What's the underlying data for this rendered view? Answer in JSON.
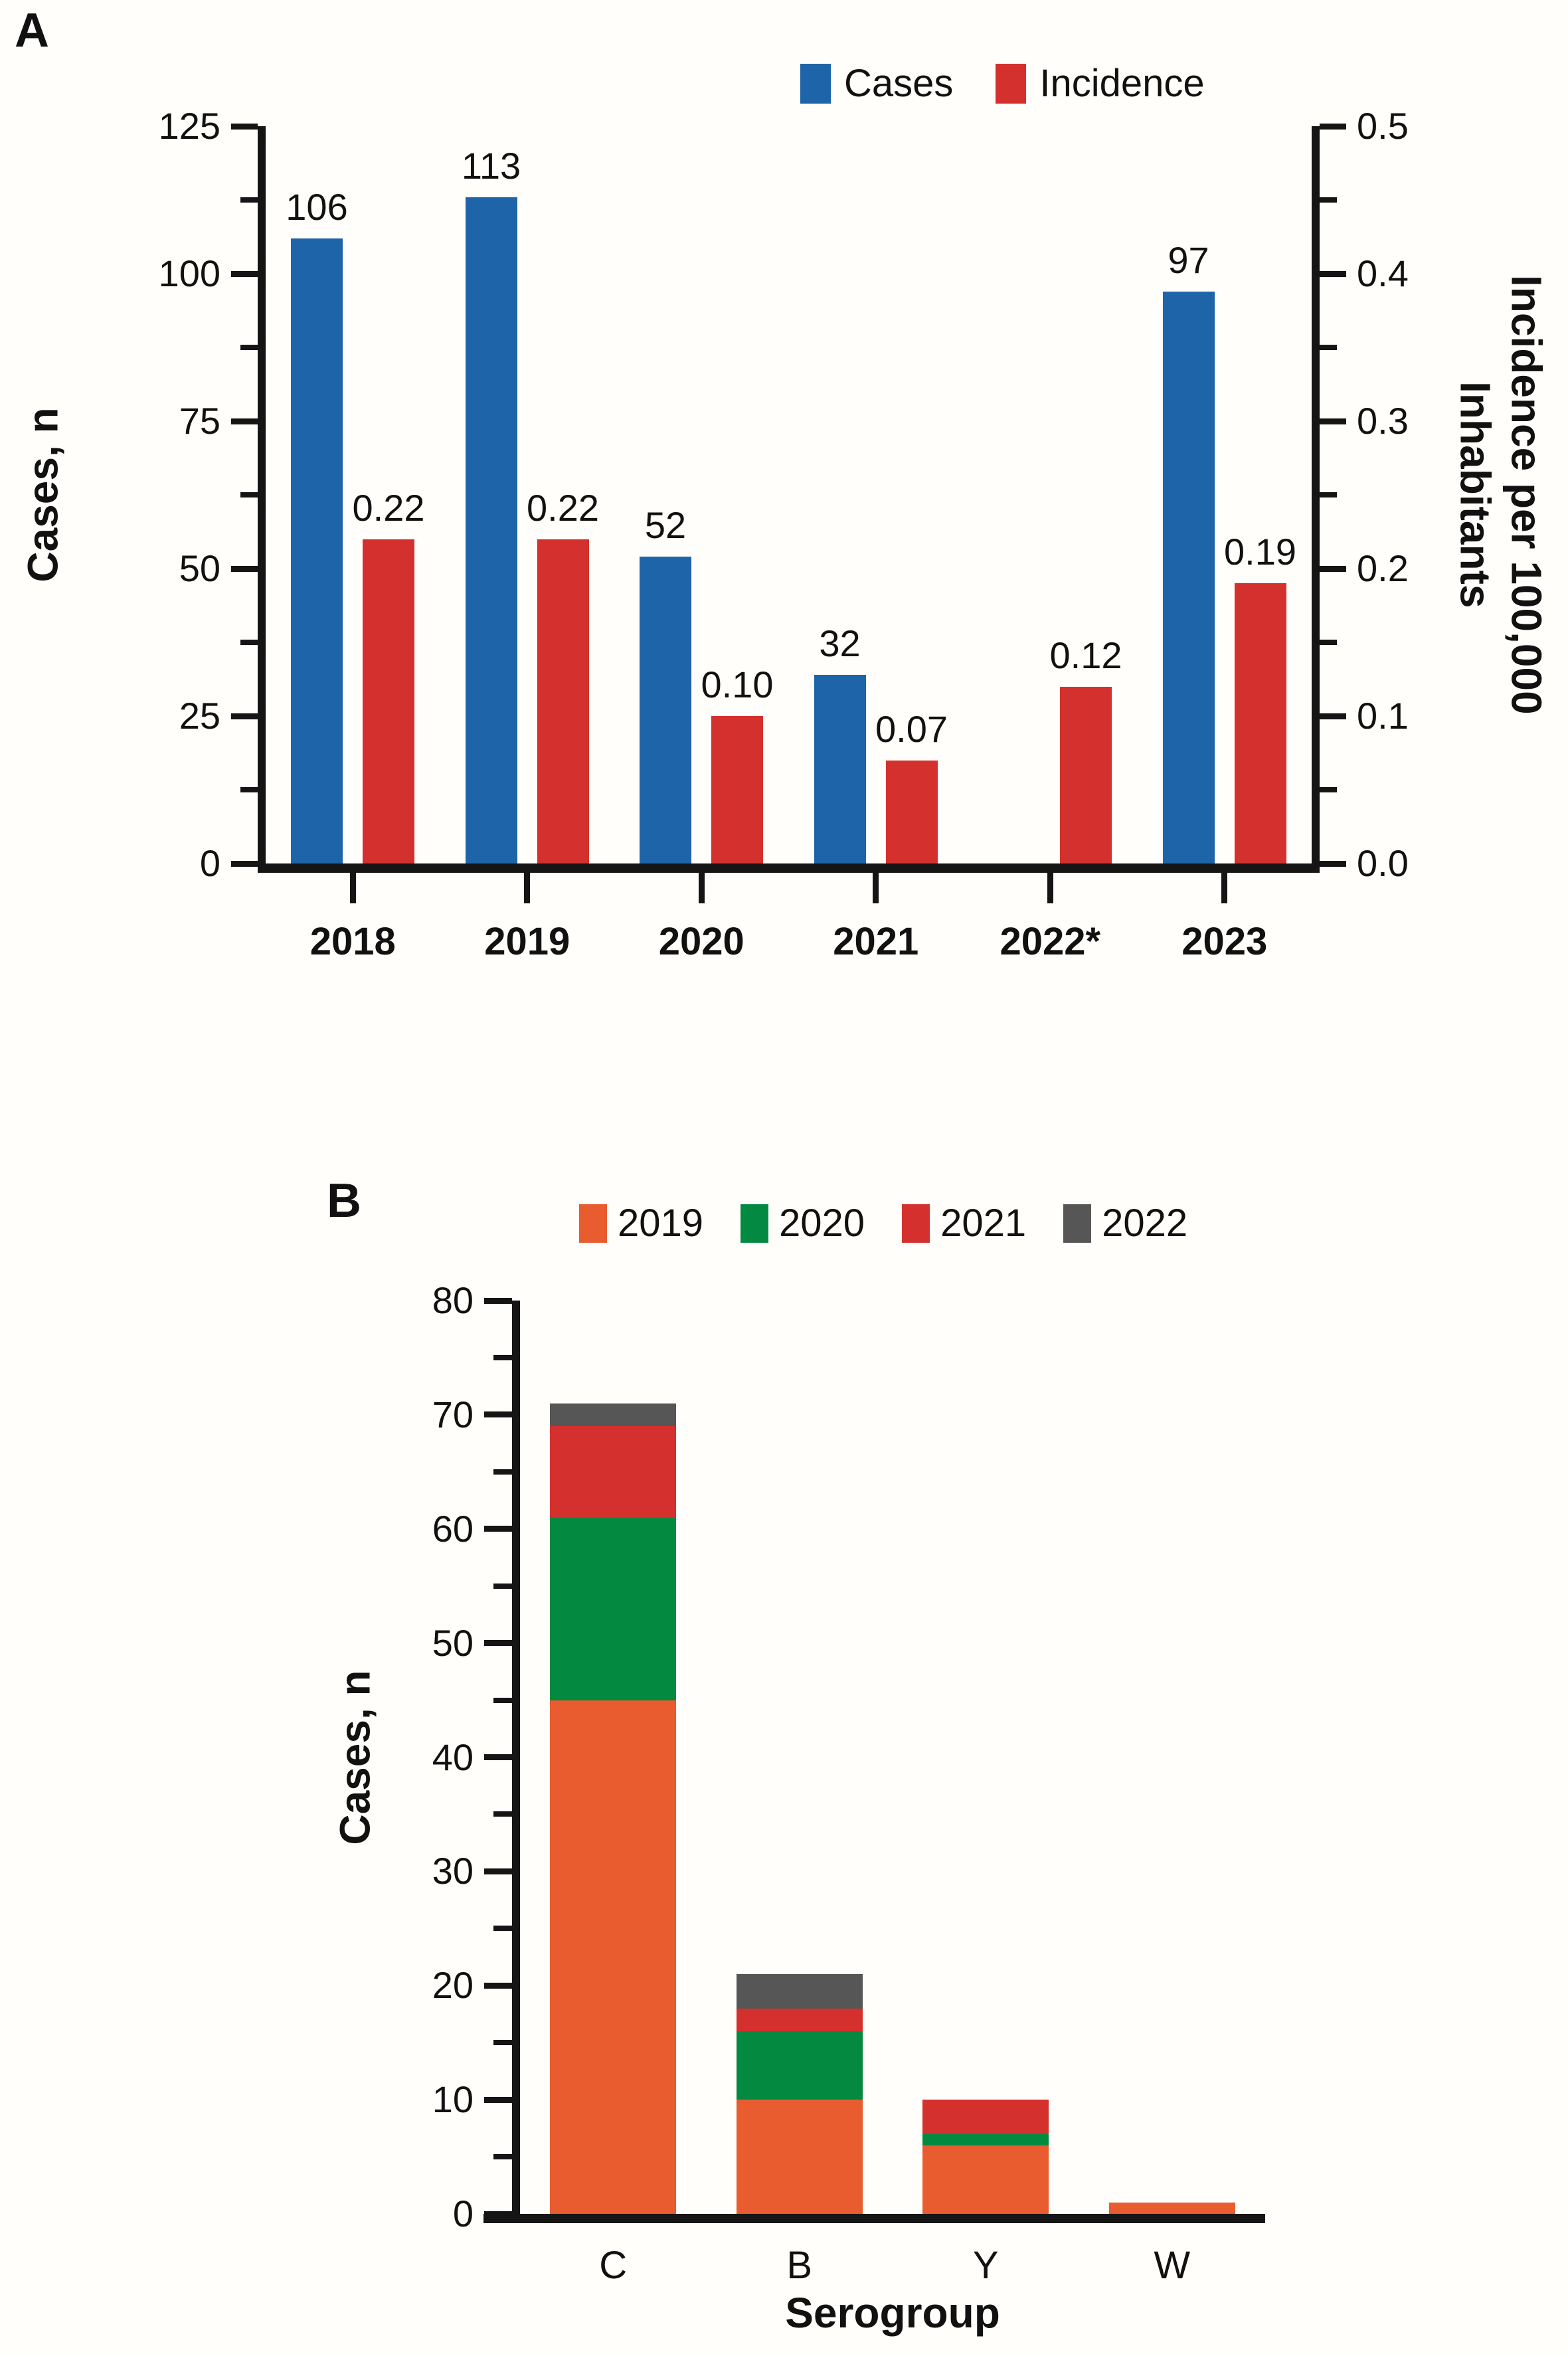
{
  "page": {
    "background": "#fffefa"
  },
  "chart_data": [
    {
      "type": "bar",
      "panel": "A",
      "title": "",
      "categories": [
        "2018",
        "2019",
        "2020",
        "2021",
        "2022*",
        "2023"
      ],
      "series": [
        {
          "name": "Cases",
          "axis": "left",
          "color": "#1e64a9",
          "values": [
            106,
            113,
            52,
            32,
            null,
            97
          ],
          "labels": [
            "106",
            "113",
            "52",
            "32",
            "",
            "97"
          ]
        },
        {
          "name": "Incidence",
          "axis": "right",
          "color": "#d4302d",
          "values": [
            0.22,
            0.22,
            0.1,
            0.07,
            0.12,
            0.19
          ],
          "labels": [
            "0.22",
            "0.22",
            "0.10",
            "0.07",
            "0.12",
            "0.19"
          ]
        }
      ],
      "ylabel_left": "Cases, n",
      "ylabel_right_lines": [
        "Incidence per 100,000",
        "Inhabitants"
      ],
      "ylim_left": [
        0,
        125
      ],
      "yticks_left": [
        "0",
        "25",
        "50",
        "75",
        "100",
        "125"
      ],
      "minor_tick_step_left": 12.5,
      "ylim_right": [
        0,
        0.5
      ],
      "yticks_right": [
        "0.0",
        "0.1",
        "0.2",
        "0.3",
        "0.4",
        "0.5"
      ],
      "minor_tick_step_right": 0.05,
      "legend_position": "top",
      "grid": false
    },
    {
      "type": "stacked-bar",
      "panel": "B",
      "title": "",
      "categories": [
        "C",
        "B",
        "Y",
        "W"
      ],
      "xlabel": "Serogroup",
      "ylabel": "Cases, n",
      "ylim": [
        0,
        80
      ],
      "yticks": [
        "0",
        "10",
        "20",
        "30",
        "40",
        "50",
        "60",
        "70",
        "80"
      ],
      "minor_tick_step": 5,
      "series": [
        {
          "name": "2019",
          "color": "#e85c2f",
          "values": [
            45,
            10,
            6,
            1
          ]
        },
        {
          "name": "2020",
          "color": "#048a40",
          "values": [
            16,
            6,
            1,
            0
          ]
        },
        {
          "name": "2021",
          "color": "#d4302d",
          "values": [
            8,
            2,
            3,
            0
          ]
        },
        {
          "name": "2022",
          "color": "#565656",
          "values": [
            2,
            3,
            0,
            0
          ]
        }
      ],
      "totals": {
        "C": 71,
        "B": 21,
        "Y": 10,
        "W": 1
      },
      "legend_position": "top",
      "grid": false
    }
  ]
}
